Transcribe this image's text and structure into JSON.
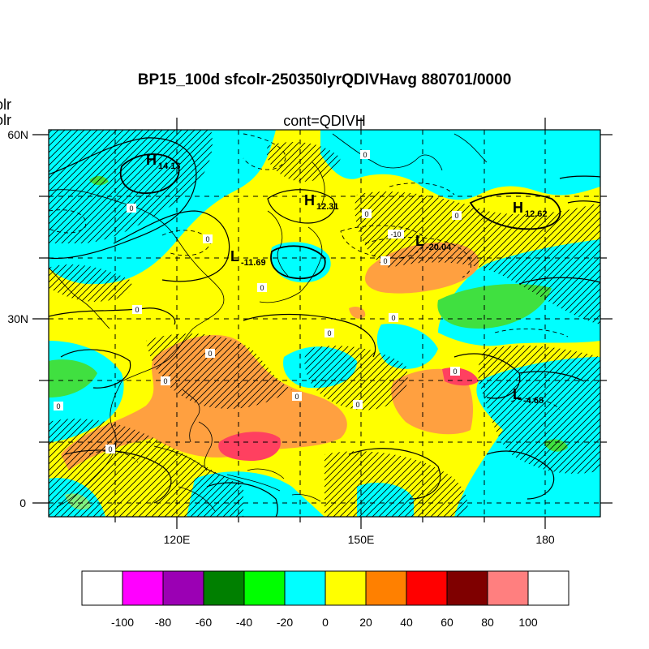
{
  "title": "BP15_100d sfcolr-250350lyrQDIVHavg  880701/0000",
  "subtitle": "cont=QDIVH",
  "left_fragments": [
    "olr",
    "olr"
  ],
  "lat_labels": [
    "60N",
    "30N",
    "0"
  ],
  "lon_labels": [
    "120E",
    "150E",
    "180"
  ],
  "colorbar": {
    "levels": [
      "-100",
      "-80",
      "-60",
      "-40",
      "-20",
      "0",
      "20",
      "40",
      "60",
      "80",
      "100"
    ],
    "colors": [
      "#ffffff",
      "#ff00ff",
      "#9b00b4",
      "#007f00",
      "#00ff00",
      "#00ffff",
      "#ffff00",
      "#ff8000",
      "#ff0000",
      "#7f0000",
      "#ff7f7f",
      "#ffffff"
    ]
  },
  "pressure_centers": [
    {
      "type": "H",
      "value": "14.13"
    },
    {
      "type": "H",
      "value": "12.31"
    },
    {
      "type": "H",
      "value": "12.62"
    },
    {
      "type": "L",
      "value": "-11.69"
    },
    {
      "type": "L",
      "value": "-20.04"
    },
    {
      "type": "L",
      "value": "-4.68"
    }
  ],
  "contour_labels": [
    "0",
    "0",
    "0",
    "0",
    "0",
    "0",
    "0",
    "0",
    "0",
    "0",
    "0",
    "0",
    "0",
    "-10",
    "0",
    "0",
    "0",
    "0"
  ],
  "fill_palette": {
    "cyan": "#00ffff",
    "yellow": "#ffff00",
    "orange": "#ffa040",
    "light_orange": "#ffb050",
    "red": "#ff4060",
    "green": "#40e040",
    "light_green": "#80f080"
  }
}
